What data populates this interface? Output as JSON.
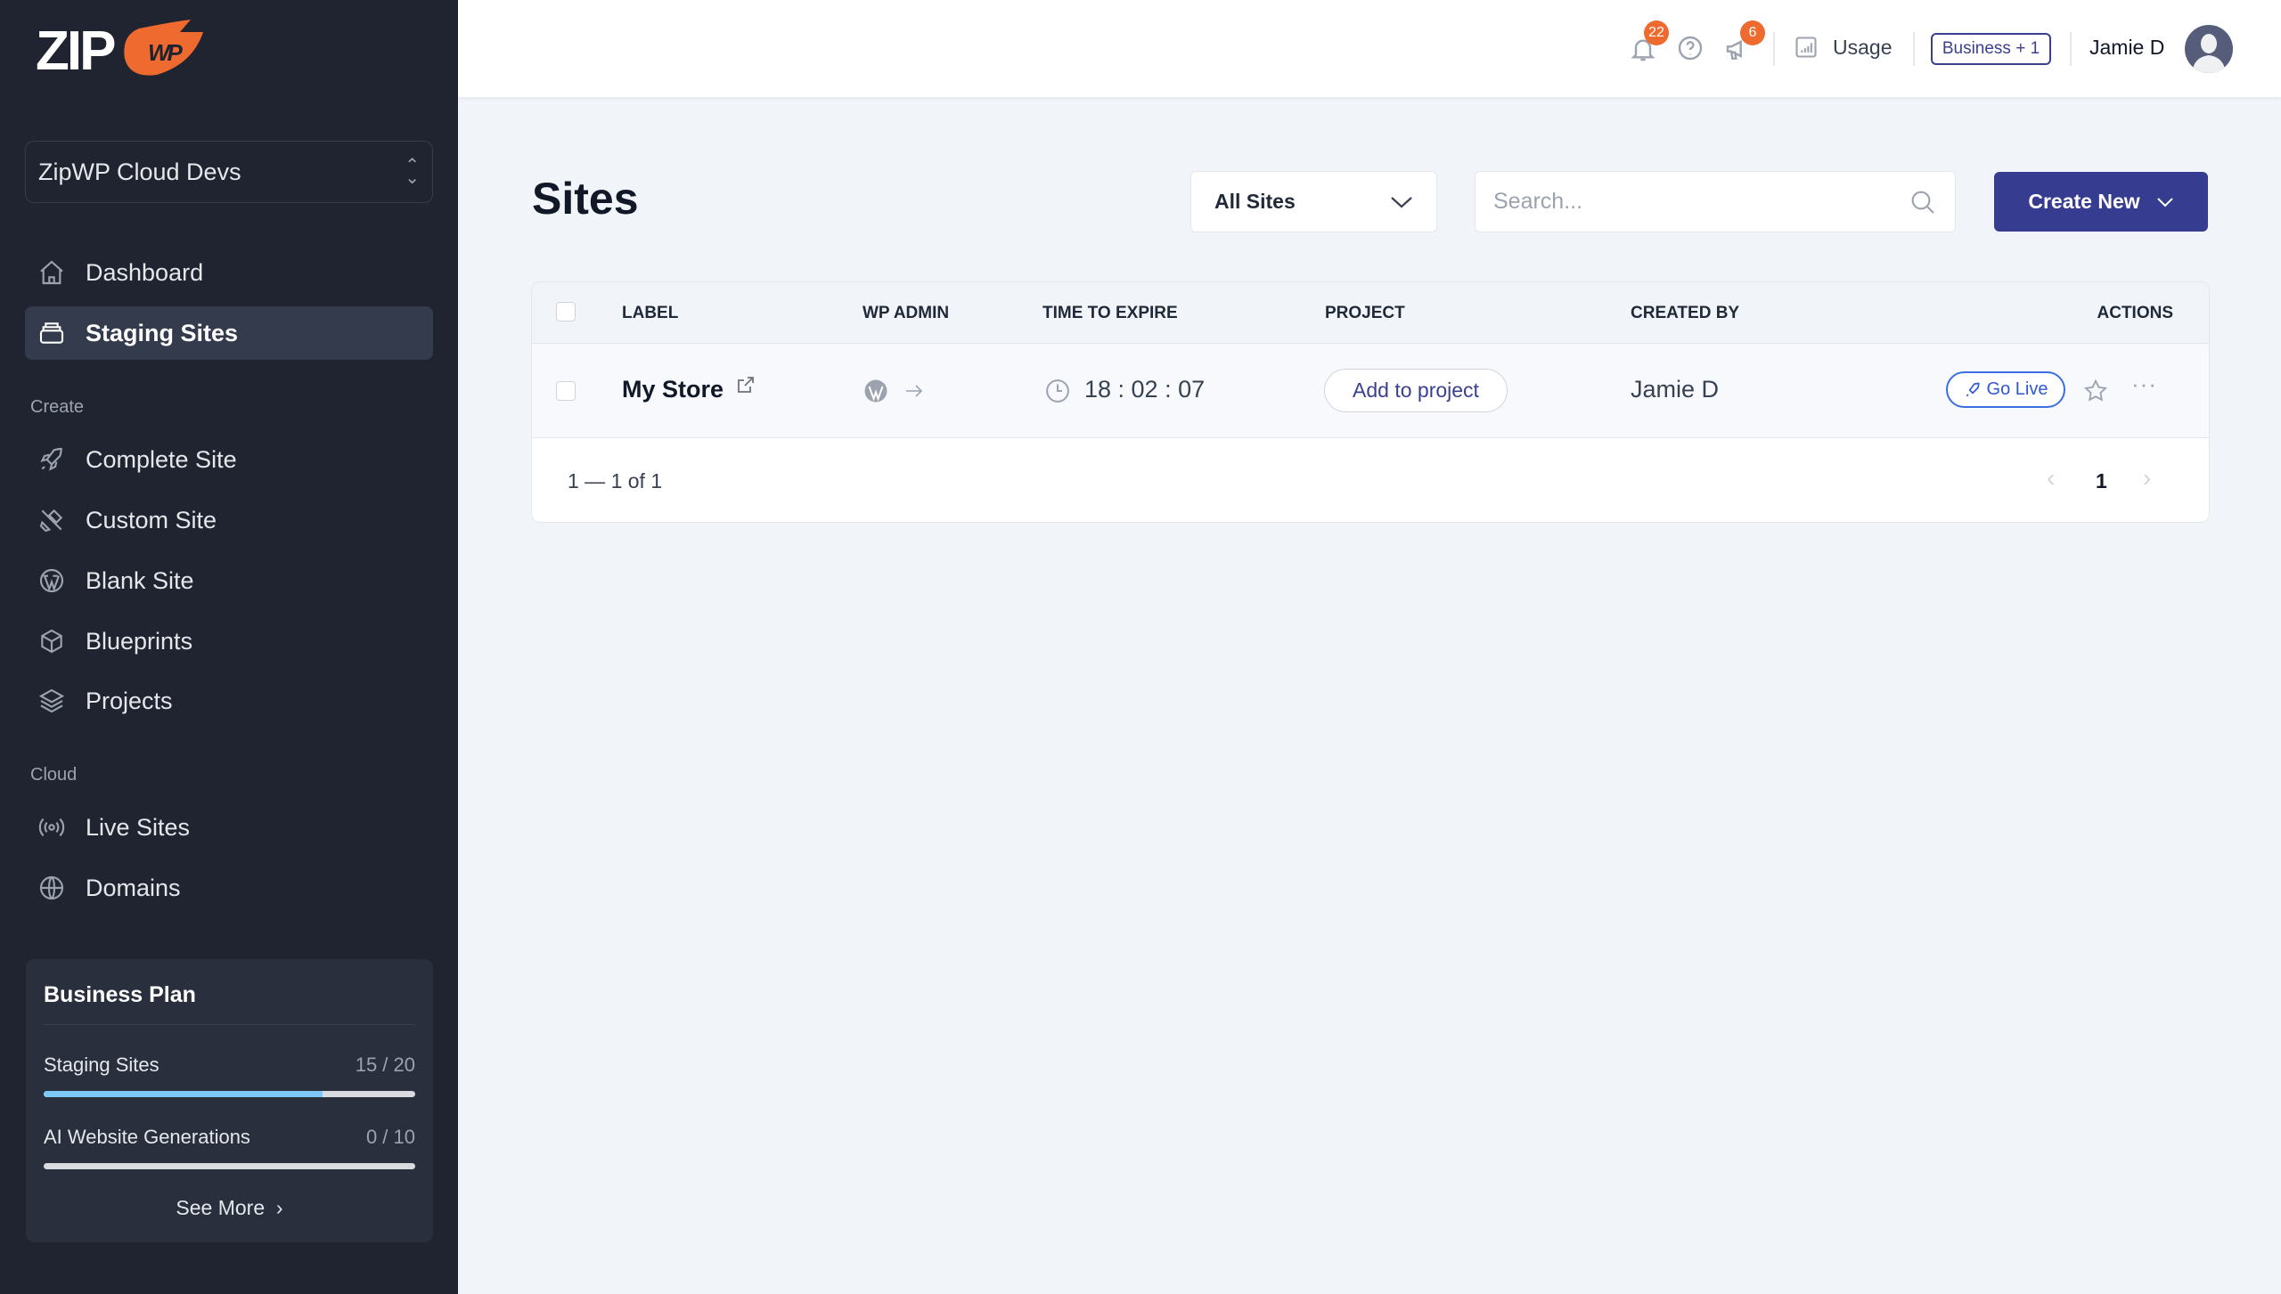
{
  "brand": {
    "logo_text": "ZIP",
    "logo_badge": "WP",
    "accent": "#ee6a2f"
  },
  "sidebar": {
    "workspace": "ZipWP Cloud Devs",
    "main": [
      {
        "label": "Dashboard",
        "icon": "home-icon"
      },
      {
        "label": "Staging Sites",
        "icon": "stack-icon",
        "active": true
      }
    ],
    "create_label": "Create",
    "create": [
      {
        "label": "Complete Site",
        "icon": "rocket-icon"
      },
      {
        "label": "Custom Site",
        "icon": "tools-icon"
      },
      {
        "label": "Blank Site",
        "icon": "wordpress-icon"
      },
      {
        "label": "Blueprints",
        "icon": "cube-icon"
      },
      {
        "label": "Projects",
        "icon": "layers-icon"
      }
    ],
    "cloud_label": "Cloud",
    "cloud": [
      {
        "label": "Live Sites",
        "icon": "broadcast-icon"
      },
      {
        "label": "Domains",
        "icon": "globe-icon"
      }
    ],
    "plan": {
      "title": "Business Plan",
      "usage": [
        {
          "label": "Staging Sites",
          "value": "15 / 20",
          "percent": 75
        },
        {
          "label": "AI Website Generations",
          "value": "0 / 10",
          "percent": 0
        }
      ],
      "see_more": "See More"
    }
  },
  "header": {
    "notifications_count": "22",
    "announcements_count": "6",
    "usage_label": "Usage",
    "plan_button": "Business + 1",
    "user_name": "Jamie D"
  },
  "main": {
    "title": "Sites",
    "filter": "All Sites",
    "search_placeholder": "Search...",
    "create_button": "Create New",
    "table": {
      "columns": [
        "LABEL",
        "WP ADMIN",
        "TIME TO EXPIRE",
        "PROJECT",
        "CREATED BY",
        "ACTIONS"
      ],
      "rows": [
        {
          "label": "My Store",
          "time_to_expire": "18 : 02 : 07",
          "project_button": "Add to project",
          "created_by": "Jamie D",
          "go_live": "Go Live"
        }
      ],
      "range": "1 — 1 of 1",
      "page": "1"
    }
  }
}
